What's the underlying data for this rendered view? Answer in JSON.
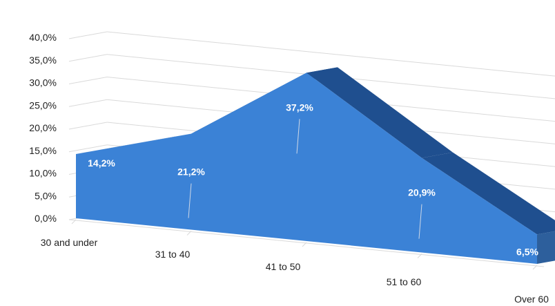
{
  "chart_data": {
    "type": "area",
    "categories": [
      "30 and under",
      "31 to 40",
      "41 to 50",
      "51 to 60",
      "Over 60"
    ],
    "values": [
      14.2,
      21.2,
      37.2,
      20.9,
      6.5
    ],
    "value_labels": [
      "14,2%",
      "21,2%",
      "37,2%",
      "20,9%",
      "6,5%"
    ],
    "ylim": [
      0,
      40
    ],
    "yticks": [
      "0,0%",
      "5,0%",
      "10,0%",
      "15,0%",
      "20,0%",
      "25,0%",
      "30,0%",
      "35,0%",
      "40,0%"
    ],
    "grid": true,
    "three_d": true
  },
  "colors": {
    "area_front": "#3b82d6",
    "area_top": "#1f4f8f",
    "area_side": "#2d5f9c",
    "grid": "#d9d9d9",
    "tick_text": "#1f1f1f",
    "label_text": "#ffffff"
  }
}
